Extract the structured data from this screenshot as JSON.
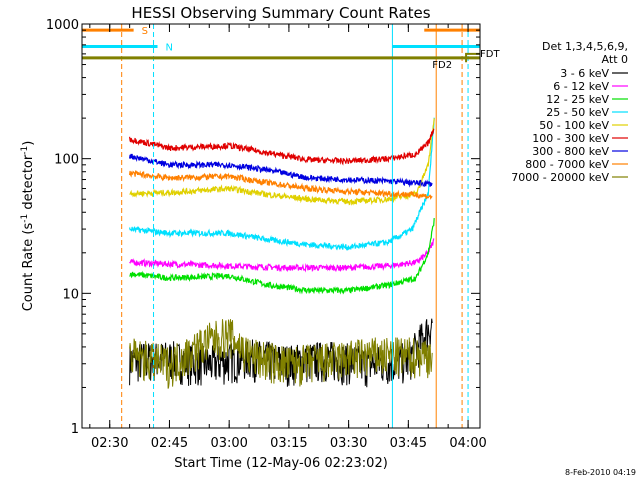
{
  "chart_data": {
    "type": "line",
    "title": "HESSI Observing Summary Count Rates",
    "xlabel": "Start Time (12-May-06 02:23:02)",
    "ylabel_main": "Count Rate (s",
    "ylabel_sup1": "-1",
    "ylabel_mid": " detector",
    "ylabel_sup2": "-1",
    "ylabel_end": ")",
    "y_scale": "log",
    "ylim": [
      1,
      1000
    ],
    "xlim": [
      "02:23:02",
      "04:03:00"
    ],
    "x_ticks": [
      "02:30",
      "02:45",
      "03:00",
      "03:15",
      "03:30",
      "03:45",
      "04:00"
    ],
    "y_ticks": [
      "1",
      "10",
      "100",
      "1000"
    ],
    "legend_header": [
      "Det 1,3,4,5,6,9,",
      "Att 0"
    ],
    "legend_position": "right",
    "series": [
      {
        "name": "3 - 6 keV",
        "color": "#000000",
        "points": [
          [
            "02:35",
            3.2
          ],
          [
            "02:45",
            3.3
          ],
          [
            "02:55",
            3.0
          ],
          [
            "03:05",
            3.4
          ],
          [
            "03:15",
            3.1
          ],
          [
            "03:25",
            3.3
          ],
          [
            "03:35",
            3.0
          ],
          [
            "03:45",
            3.2
          ],
          [
            "03:51",
            6.0
          ]
        ]
      },
      {
        "name": "6 - 12 keV",
        "color": "#ff00ff",
        "points": [
          [
            "02:35",
            17
          ],
          [
            "02:45",
            16.5
          ],
          [
            "03:00",
            16
          ],
          [
            "03:15",
            15.5
          ],
          [
            "03:30",
            15.5
          ],
          [
            "03:40",
            16
          ],
          [
            "03:47",
            17
          ],
          [
            "03:50",
            20
          ],
          [
            "03:51.5",
            25
          ]
        ]
      },
      {
        "name": "12 - 25 keV",
        "color": "#00e000",
        "points": [
          [
            "02:35",
            14
          ],
          [
            "02:45",
            13
          ],
          [
            "03:00",
            13.5
          ],
          [
            "03:10",
            11.5
          ],
          [
            "03:20",
            10.5
          ],
          [
            "03:30",
            10.5
          ],
          [
            "03:40",
            11.5
          ],
          [
            "03:47",
            13
          ],
          [
            "03:50",
            20
          ],
          [
            "03:51.5",
            35
          ]
        ]
      },
      {
        "name": "25 - 50 keV",
        "color": "#00e0ff",
        "points": [
          [
            "02:35",
            30
          ],
          [
            "02:45",
            28
          ],
          [
            "03:00",
            28
          ],
          [
            "03:10",
            25
          ],
          [
            "03:20",
            23
          ],
          [
            "03:30",
            22
          ],
          [
            "03:40",
            24
          ],
          [
            "03:46",
            30
          ],
          [
            "03:50",
            55
          ],
          [
            "03:51.5",
            200
          ]
        ]
      },
      {
        "name": "50 - 100 keV",
        "color": "#e0d000",
        "points": [
          [
            "02:35",
            55
          ],
          [
            "02:45",
            56
          ],
          [
            "03:00",
            60
          ],
          [
            "03:10",
            54
          ],
          [
            "03:20",
            50
          ],
          [
            "03:30",
            48
          ],
          [
            "03:40",
            50
          ],
          [
            "03:47",
            55
          ],
          [
            "03:50",
            90
          ],
          [
            "03:51.5",
            200
          ]
        ]
      },
      {
        "name": "100 - 300 keV",
        "color": "#e00000",
        "points": [
          [
            "02:35",
            140
          ],
          [
            "02:45",
            120
          ],
          [
            "03:00",
            125
          ],
          [
            "03:10",
            110
          ],
          [
            "03:20",
            98
          ],
          [
            "03:30",
            96
          ],
          [
            "03:40",
            100
          ],
          [
            "03:47",
            108
          ],
          [
            "03:50",
            130
          ],
          [
            "03:51.5",
            170
          ]
        ]
      },
      {
        "name": "300 - 800 keV",
        "color": "#0000e0",
        "points": [
          [
            "02:35",
            105
          ],
          [
            "02:45",
            90
          ],
          [
            "03:00",
            90
          ],
          [
            "03:10",
            82
          ],
          [
            "03:20",
            72
          ],
          [
            "03:30",
            70
          ],
          [
            "03:40",
            68
          ],
          [
            "03:47",
            66
          ],
          [
            "03:51",
            65
          ]
        ]
      },
      {
        "name": "800 - 7000 keV",
        "color": "#ff8000",
        "points": [
          [
            "02:35",
            78
          ],
          [
            "02:45",
            72
          ],
          [
            "03:00",
            74
          ],
          [
            "03:10",
            66
          ],
          [
            "03:20",
            60
          ],
          [
            "03:30",
            57
          ],
          [
            "03:40",
            55
          ],
          [
            "03:47",
            54
          ],
          [
            "03:51",
            52
          ]
        ]
      },
      {
        "name": "7000 - 20000 keV",
        "color": "#808000",
        "points": [
          [
            "02:35",
            3.5
          ],
          [
            "02:45",
            3.0
          ],
          [
            "02:55",
            4.5
          ],
          [
            "03:00",
            5.0
          ],
          [
            "03:05",
            3.5
          ],
          [
            "03:15",
            3.0
          ],
          [
            "03:25",
            3.2
          ],
          [
            "03:35",
            3.5
          ],
          [
            "03:45",
            3.5
          ],
          [
            "03:51",
            3.6
          ]
        ]
      }
    ],
    "flag_bars": [
      {
        "label": "S",
        "color": "#ff8000",
        "segments": [
          [
            "02:23:02",
            "02:36"
          ],
          [
            "03:49",
            "04:03:00"
          ]
        ],
        "y": 900
      },
      {
        "label": "N",
        "color": "#00e0ff",
        "segments": [
          [
            "02:23:02",
            "02:42"
          ],
          [
            "03:41",
            "04:03:00"
          ]
        ],
        "y": 680
      },
      {
        "label": "FD2",
        "color": "#808000",
        "segments": [
          [
            "02:23:02",
            "04:03:00"
          ]
        ],
        "y": 560
      },
      {
        "label": "FDT",
        "color": "#808000",
        "segments": [],
        "y": 600
      }
    ],
    "vertical_markers": [
      {
        "time": "02:33",
        "color": "#ff8000",
        "style": "dashed"
      },
      {
        "time": "02:41",
        "color": "#00e0ff",
        "style": "dashed"
      },
      {
        "time": "03:41",
        "color": "#00e0ff",
        "style": "solid"
      },
      {
        "time": "03:52",
        "color": "#ff8000",
        "style": "solid"
      },
      {
        "time": "03:58.5",
        "color": "#ff8000",
        "style": "dashed"
      },
      {
        "time": "04:00",
        "color": "#00e0ff",
        "style": "dashed"
      }
    ],
    "footer": "8-Feb-2010 04:19"
  }
}
